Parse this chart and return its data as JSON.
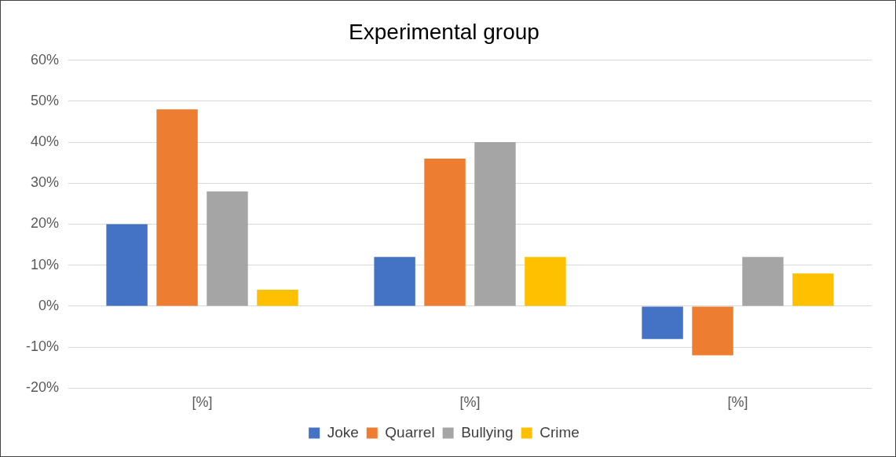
{
  "chart_data": {
    "type": "bar",
    "title": "Experimental group",
    "categories": [
      "[%]",
      "[%]",
      "[%]"
    ],
    "series": [
      {
        "name": "Joke",
        "color": "#4472c4",
        "values": [
          20,
          12,
          -8
        ]
      },
      {
        "name": "Quarrel",
        "color": "#ed7d31",
        "values": [
          48,
          36,
          -12
        ]
      },
      {
        "name": "Bullying",
        "color": "#a5a5a5",
        "values": [
          28,
          40,
          12
        ]
      },
      {
        "name": "Crime",
        "color": "#ffc000",
        "values": [
          4,
          12,
          8
        ]
      }
    ],
    "ylim": [
      -20,
      60
    ],
    "yticks": [
      {
        "value": -20,
        "label": "-20%"
      },
      {
        "value": -10,
        "label": "-10%"
      },
      {
        "value": 0,
        "label": "0%"
      },
      {
        "value": 10,
        "label": "10%"
      },
      {
        "value": 20,
        "label": "20%"
      },
      {
        "value": 30,
        "label": "30%"
      },
      {
        "value": 40,
        "label": "40%"
      },
      {
        "value": 50,
        "label": "50%"
      },
      {
        "value": 60,
        "label": "60%"
      }
    ],
    "grid": "y",
    "legend": "bottom"
  }
}
